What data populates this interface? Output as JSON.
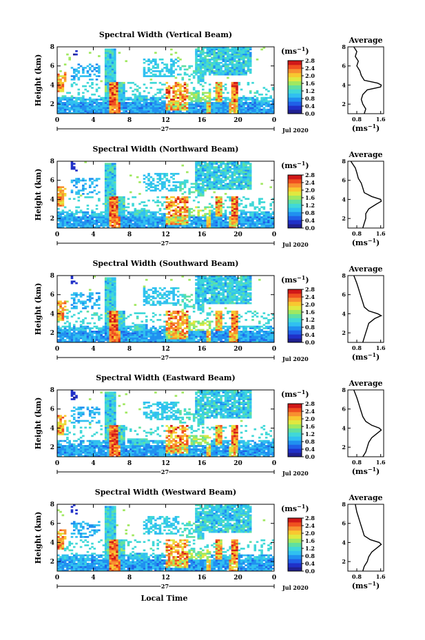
{
  "figure": {
    "xlabel": "Local Time",
    "date_label": "Jul 2020",
    "day_label": "27",
    "ylabel": "Height (km)",
    "colorbar_unit": "(ms",
    "colorbar_unit_exp": "−1",
    "colorbar_unit_close": ")",
    "avg_title": "Average",
    "avg_xlabel": "(ms",
    "avg_xlabel_exp": "−1",
    "avg_xlabel_close": ")",
    "colors": [
      "#202090",
      "#2030c8",
      "#2060e8",
      "#2090f0",
      "#30c0f0",
      "#40d8d8",
      "#60e0a0",
      "#a0e860",
      "#e0e840",
      "#f8c830",
      "#f89030",
      "#f05020",
      "#d01818"
    ]
  },
  "chart_data": [
    {
      "type": "heatmap",
      "title": "Spectral Width (Vertical Beam)",
      "xlim": [
        0,
        24
      ],
      "ylim": [
        1,
        8
      ],
      "xticks": [
        "0",
        "4",
        "8",
        "12",
        "16",
        "20",
        "0"
      ],
      "yticks": [
        "2",
        "4",
        "6",
        "8"
      ],
      "colorbar_ticks": [
        "0.0",
        "0.4",
        "0.8",
        "1.2",
        "1.6",
        "2.0",
        "2.4",
        "2.8"
      ],
      "avg": {
        "xticks": [
          "0.8",
          "1.6"
        ],
        "yticks": [
          "2",
          "4",
          "6",
          "8"
        ],
        "profile": [
          [
            1.0,
            1.05
          ],
          [
            1.5,
            1.1
          ],
          [
            2.0,
            1.0
          ],
          [
            2.5,
            0.95
          ],
          [
            3.0,
            1.0
          ],
          [
            3.5,
            1.15
          ],
          [
            3.8,
            1.6
          ],
          [
            4.0,
            1.62
          ],
          [
            4.2,
            1.5
          ],
          [
            4.5,
            1.05
          ],
          [
            5.0,
            0.95
          ],
          [
            5.5,
            0.9
          ],
          [
            6.0,
            0.8
          ],
          [
            6.5,
            0.85
          ],
          [
            7.0,
            0.75
          ],
          [
            7.5,
            0.8
          ],
          [
            8.0,
            0.7
          ]
        ]
      }
    },
    {
      "type": "heatmap",
      "title": "Spectral Width (Northward Beam)",
      "xlim": [
        0,
        24
      ],
      "ylim": [
        1,
        8
      ],
      "xticks": [
        "0",
        "4",
        "8",
        "12",
        "16",
        "20",
        "0"
      ],
      "yticks": [
        "2",
        "4",
        "6",
        "8"
      ],
      "colorbar_ticks": [
        "0.0",
        "0.4",
        "0.8",
        "1.2",
        "1.6",
        "2.0",
        "2.4",
        "2.8"
      ],
      "avg": {
        "xticks": [
          "0.8",
          "1.6"
        ],
        "yticks": [
          "2",
          "4",
          "6",
          "8"
        ],
        "profile": [
          [
            1.0,
            1.0
          ],
          [
            1.5,
            1.05
          ],
          [
            2.0,
            1.1
          ],
          [
            2.5,
            1.1
          ],
          [
            3.0,
            1.2
          ],
          [
            3.5,
            1.45
          ],
          [
            3.8,
            1.62
          ],
          [
            4.0,
            1.6
          ],
          [
            4.3,
            1.3
          ],
          [
            4.7,
            1.05
          ],
          [
            5.2,
            1.0
          ],
          [
            5.7,
            0.95
          ],
          [
            6.2,
            0.85
          ],
          [
            6.8,
            0.8
          ],
          [
            7.3,
            0.75
          ],
          [
            8.0,
            0.6
          ]
        ]
      }
    },
    {
      "type": "heatmap",
      "title": "Spectral Width (Southward Beam)",
      "xlim": [
        0,
        24
      ],
      "ylim": [
        1,
        8
      ],
      "xticks": [
        "0",
        "4",
        "8",
        "12",
        "16",
        "20",
        "0"
      ],
      "yticks": [
        "2",
        "4",
        "6",
        "8"
      ],
      "colorbar_ticks": [
        "0.0",
        "0.4",
        "0.8",
        "1.2",
        "1.6",
        "2.0",
        "2.4",
        "2.8"
      ],
      "avg": {
        "xticks": [
          "0.8",
          "1.6"
        ],
        "yticks": [
          "2",
          "4",
          "6",
          "8"
        ],
        "profile": [
          [
            1.0,
            1.0
          ],
          [
            1.5,
            1.05
          ],
          [
            2.0,
            1.1
          ],
          [
            2.5,
            1.15
          ],
          [
            3.0,
            1.2
          ],
          [
            3.5,
            1.4
          ],
          [
            3.8,
            1.62
          ],
          [
            4.0,
            1.5
          ],
          [
            4.3,
            1.2
          ],
          [
            4.7,
            1.05
          ],
          [
            5.2,
            1.0
          ],
          [
            5.7,
            0.95
          ],
          [
            6.2,
            0.9
          ],
          [
            6.7,
            0.85
          ],
          [
            7.2,
            0.8
          ],
          [
            8.0,
            0.7
          ]
        ]
      }
    },
    {
      "type": "heatmap",
      "title": "Spectral Width (Eastward Beam)",
      "xlim": [
        0,
        24
      ],
      "ylim": [
        1,
        8
      ],
      "xticks": [
        "0",
        "4",
        "8",
        "12",
        "16",
        "20",
        "0"
      ],
      "yticks": [
        "2",
        "4",
        "6",
        "8"
      ],
      "colorbar_ticks": [
        "0.0",
        "0.4",
        "0.8",
        "1.2",
        "1.6",
        "2.0",
        "2.4",
        "2.8"
      ],
      "avg": {
        "xticks": [
          "0.8",
          "1.6"
        ],
        "yticks": [
          "2",
          "4",
          "6",
          "8"
        ],
        "profile": [
          [
            1.0,
            1.0
          ],
          [
            1.5,
            1.1
          ],
          [
            2.0,
            1.15
          ],
          [
            2.5,
            1.2
          ],
          [
            3.0,
            1.3
          ],
          [
            3.5,
            1.5
          ],
          [
            3.8,
            1.62
          ],
          [
            4.0,
            1.55
          ],
          [
            4.3,
            1.3
          ],
          [
            4.7,
            1.1
          ],
          [
            5.2,
            1.0
          ],
          [
            5.7,
            0.95
          ],
          [
            6.2,
            0.9
          ],
          [
            6.7,
            0.85
          ],
          [
            7.2,
            0.8
          ],
          [
            8.0,
            0.7
          ]
        ]
      }
    },
    {
      "type": "heatmap",
      "title": "Spectral Width (Westward Beam)",
      "xlim": [
        0,
        24
      ],
      "ylim": [
        1,
        8
      ],
      "xticks": [
        "0",
        "4",
        "8",
        "12",
        "16",
        "20",
        "0"
      ],
      "yticks": [
        "2",
        "4",
        "6",
        "8"
      ],
      "colorbar_ticks": [
        "0.0",
        "0.4",
        "0.8",
        "1.2",
        "1.6",
        "2.0",
        "2.4",
        "2.8"
      ],
      "avg": {
        "xticks": [
          "0.8",
          "1.6"
        ],
        "yticks": [
          "2",
          "4",
          "6",
          "8"
        ],
        "profile": [
          [
            1.0,
            1.0
          ],
          [
            1.5,
            1.05
          ],
          [
            2.0,
            1.15
          ],
          [
            2.5,
            1.2
          ],
          [
            3.0,
            1.3
          ],
          [
            3.5,
            1.5
          ],
          [
            3.8,
            1.62
          ],
          [
            4.0,
            1.55
          ],
          [
            4.3,
            1.25
          ],
          [
            4.7,
            1.05
          ],
          [
            5.2,
            1.0
          ],
          [
            5.7,
            0.95
          ],
          [
            6.2,
            0.9
          ],
          [
            6.7,
            0.85
          ],
          [
            7.2,
            0.8
          ],
          [
            8.0,
            0.75
          ]
        ]
      }
    }
  ]
}
